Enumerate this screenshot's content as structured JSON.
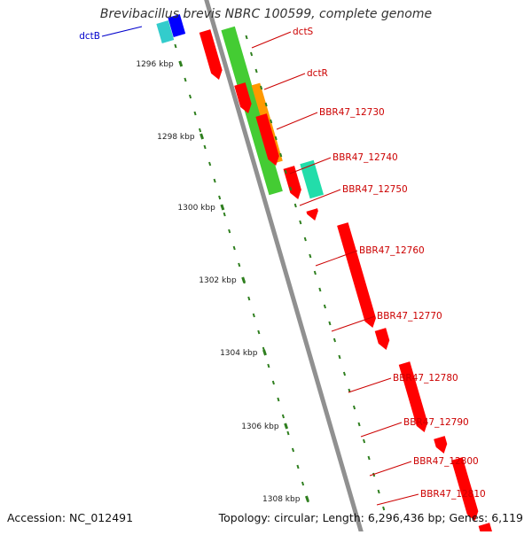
{
  "title": "Brevibacillus brevis NBRC 100599, complete genome",
  "footer": {
    "accession": "Accession: NC_012491",
    "summary": "Topology: circular; Length: 6,296,436 bp; Genes: 6,119"
  },
  "scale_labels": [
    "1296 kbp",
    "1298 kbp",
    "1300 kbp",
    "1302 kbp",
    "1304 kbp",
    "1306 kbp",
    "1308 kbp"
  ],
  "gene_labels": [
    {
      "text": "dctB",
      "color": "#0000cc"
    },
    {
      "text": "dctS",
      "color": "#cc0000"
    },
    {
      "text": "dctR",
      "color": "#cc0000"
    },
    {
      "text": "BBR47_12730",
      "color": "#cc0000"
    },
    {
      "text": "BBR47_12740",
      "color": "#cc0000"
    },
    {
      "text": "BBR47_12750",
      "color": "#cc0000"
    },
    {
      "text": "BBR47_12760",
      "color": "#cc0000"
    },
    {
      "text": "BBR47_12770",
      "color": "#cc0000"
    },
    {
      "text": "BBR47_12780",
      "color": "#cc0000"
    },
    {
      "text": "BBR47_12790",
      "color": "#cc0000"
    },
    {
      "text": "BBR47_12800",
      "color": "#cc0000"
    },
    {
      "text": "BBR47_12810",
      "color": "#cc0000"
    }
  ],
  "colors": {
    "cds": "#ff0000",
    "backbone": "#909090",
    "tick": "#2f7f1f",
    "gene_cluster": "#44cc33",
    "orange": "#ff9900",
    "teal": "#22ddaa",
    "cyan": "#33cccc",
    "blue": "#0000ff"
  }
}
